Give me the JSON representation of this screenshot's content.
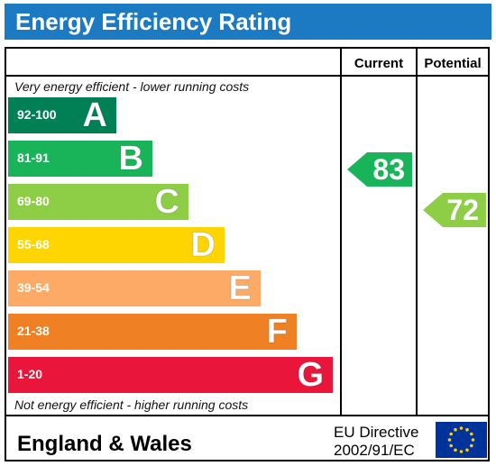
{
  "title": "Energy Efficiency Rating",
  "columns": {
    "current": "Current",
    "potential": "Potential"
  },
  "notes": {
    "top": "Very energy efficient - lower running costs",
    "bottom": "Not energy efficient - higher running costs"
  },
  "footer": {
    "country": "England & Wales",
    "directive_line1": "EU Directive",
    "directive_line2": "2002/91/EC"
  },
  "chart_data": {
    "type": "bar",
    "title": "Energy Efficiency Rating",
    "bands": [
      {
        "letter": "A",
        "range": "92-100",
        "color": "#008054"
      },
      {
        "letter": "B",
        "range": "81-91",
        "color": "#19b459"
      },
      {
        "letter": "C",
        "range": "69-80",
        "color": "#8dce46"
      },
      {
        "letter": "D",
        "range": "55-68",
        "color": "#ffd500"
      },
      {
        "letter": "E",
        "range": "39-54",
        "color": "#fcaa65"
      },
      {
        "letter": "F",
        "range": "21-38",
        "color": "#ef8023"
      },
      {
        "letter": "G",
        "range": "1-20",
        "color": "#e9153b"
      }
    ],
    "current": {
      "value": "83",
      "band": "B",
      "color": "#19b459"
    },
    "potential": {
      "value": "72",
      "band": "C",
      "color": "#8dce46"
    }
  }
}
